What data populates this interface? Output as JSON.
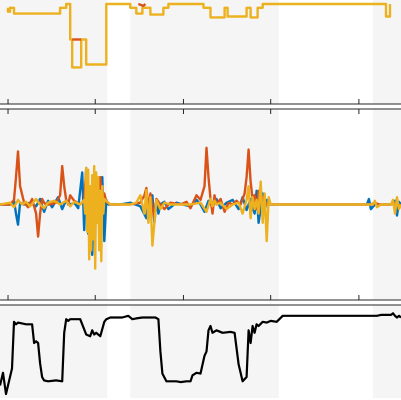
{
  "figure": {
    "description_free": true
  },
  "colors": {
    "blue": "#0072BD",
    "orange": "#D95319",
    "yellow": "#EDB120",
    "black": "#000000",
    "shade": "#F5F5F5",
    "axis": "#262626"
  },
  "chart_data": [
    {
      "type": "line",
      "panel": "top",
      "xlim": [
        0,
        400
      ],
      "ylim": [
        0,
        100
      ],
      "grid": false,
      "legend": "none",
      "shaded_x_ranges": [
        [
          0,
          107
        ],
        [
          130,
          278
        ],
        [
          372,
          400
        ]
      ],
      "x_ticks": [
        95,
        183,
        270,
        358
      ],
      "series": [
        {
          "color": "yellow",
          "x": [
            8,
            8,
            10,
            10,
            14,
            14,
            60,
            60,
            66,
            66,
            70,
            70,
            72,
            72,
            81,
            81,
            86,
            86,
            106,
            106,
            130,
            130,
            136,
            136,
            142,
            142,
            150,
            150,
            163,
            163,
            168,
            168,
            203,
            203,
            210,
            210,
            224,
            224,
            227,
            227,
            246,
            246,
            250,
            250,
            257,
            257,
            262,
            262,
            385,
            385,
            389,
            389
          ],
          "y": [
            96,
            92,
            92,
            96,
            96,
            90,
            90,
            96,
            96,
            100,
            100,
            63,
            63,
            34,
            34,
            63,
            63,
            37,
            37,
            100,
            100,
            96,
            96,
            90,
            90,
            96,
            96,
            89,
            89,
            96,
            96,
            100,
            100,
            96,
            96,
            86,
            86,
            96,
            96,
            87,
            87,
            96,
            96,
            86,
            86,
            96,
            96,
            100,
            100,
            87,
            87,
            100
          ]
        },
        {
          "color": "orange",
          "x": [
            138,
            143,
            145
          ],
          "y": [
            100,
            98,
            100
          ]
        },
        {
          "color": "orange",
          "x": [
            72,
            81
          ],
          "y": [
            63,
            63
          ]
        }
      ]
    },
    {
      "type": "line",
      "panel": "middle",
      "xlim": [
        0,
        400
      ],
      "ylim": [
        -1,
        1
      ],
      "grid": false,
      "legend": "none",
      "shaded_x_ranges": [
        [
          0,
          107
        ],
        [
          130,
          278
        ],
        [
          372,
          400
        ]
      ],
      "x_ticks": [
        95,
        183,
        270,
        358
      ],
      "series": [
        {
          "color": "blue",
          "x": [
            0,
            12,
            14,
            16,
            18,
            20,
            24,
            30,
            36,
            40,
            44,
            48,
            52,
            58,
            62,
            66,
            70,
            74,
            78,
            82,
            84,
            86,
            88,
            90,
            92,
            94,
            96,
            98,
            100,
            102,
            104,
            106,
            108,
            112,
            120,
            130,
            140,
            146,
            148,
            150,
            152,
            154,
            156,
            158,
            160,
            164,
            168,
            176,
            182,
            190,
            196,
            200,
            204,
            208,
            212,
            216,
            220,
            226,
            232,
            238,
            242,
            246,
            250,
            254,
            256,
            258,
            262,
            264,
            266,
            270,
            274,
            280,
            290,
            300,
            320,
            340,
            360,
            366,
            368,
            370,
            374,
            380,
            390,
            394,
            396,
            398,
            400
          ],
          "y": [
            0,
            0,
            0.04,
            -0.1,
            -0.22,
            0.02,
            0,
            0.02,
            -0.02,
            0.06,
            -0.08,
            0.04,
            -0.03,
            0.08,
            -0.05,
            0.05,
            0,
            0.02,
            -0.04,
            0.35,
            -0.28,
            0.4,
            -0.32,
            0.18,
            -0.55,
            0.22,
            -0.12,
            0.1,
            -0.2,
            0.3,
            -0.4,
            0.05,
            0,
            0,
            0,
            0.02,
            -0.02,
            -0.15,
            0.06,
            -0.08,
            0.1,
            -0.2,
            0.04,
            -0.1,
            0,
            0.03,
            -0.05,
            0.02,
            0,
            -0.02,
            0.05,
            0,
            -0.08,
            0.04,
            -0.02,
            0.06,
            -0.04,
            0.02,
            0.05,
            -0.05,
            0.08,
            -0.06,
            0.06,
            -0.1,
            0.15,
            -0.2,
            0.12,
            -0.08,
            0.05,
            0,
            0,
            0,
            0,
            0,
            0,
            0,
            0,
            0,
            0.06,
            -0.05,
            0,
            0,
            0,
            0.04,
            -0.12,
            0.03,
            0
          ]
        },
        {
          "color": "orange",
          "x": [
            0,
            10,
            14,
            16,
            18,
            20,
            24,
            28,
            32,
            36,
            38,
            40,
            42,
            44,
            46,
            50,
            56,
            60,
            62,
            64,
            66,
            68,
            70,
            74,
            80,
            84,
            86,
            88,
            90,
            92,
            94,
            96,
            98,
            100,
            102,
            104,
            106,
            110,
            120,
            130,
            140,
            144,
            146,
            148,
            150,
            152,
            154,
            156,
            160,
            164,
            170,
            180,
            186,
            190,
            196,
            200,
            204,
            206,
            208,
            210,
            212,
            214,
            216,
            220,
            224,
            228,
            232,
            236,
            240,
            244,
            246,
            248,
            250,
            252,
            254,
            256,
            258,
            260,
            262,
            264,
            266,
            270,
            276,
            290,
            320,
            350,
            370,
            374,
            378,
            390,
            396,
            398,
            400
          ],
          "y": [
            0,
            0,
            0.05,
            0.3,
            0.58,
            0.2,
            0.02,
            -0.03,
            0.06,
            -0.1,
            -0.35,
            -0.1,
            0.06,
            0.02,
            0,
            0,
            0.02,
            0.1,
            0.42,
            0.2,
            0.05,
            0,
            0.1,
            0.04,
            0,
            0.05,
            0.38,
            0.04,
            -0.1,
            0.06,
            -0.08,
            0.1,
            0.02,
            0.3,
            -0.05,
            0.12,
            0.03,
            0,
            0,
            0,
            0.02,
            0.1,
            0.18,
            -0.05,
            0.12,
            -0.02,
            -0.15,
            0.06,
            0,
            -0.05,
            0.02,
            0,
            0.03,
            -0.04,
            0.1,
            0.05,
            0.2,
            0.62,
            0.3,
            0.06,
            -0.1,
            0.1,
            0,
            0.06,
            -0.08,
            0.02,
            0,
            0.04,
            0,
            0.12,
            0.3,
            0.6,
            0.25,
            0.06,
            0.1,
            -0.05,
            0.15,
            0.02,
            0.08,
            0.04,
            0,
            0,
            0,
            0,
            0,
            0,
            0,
            0.02,
            0,
            0,
            0.02,
            -0.02,
            0
          ]
        },
        {
          "color": "yellow",
          "x": [
            0,
            10,
            14,
            18,
            22,
            26,
            30,
            36,
            40,
            44,
            48,
            54,
            60,
            66,
            70,
            74,
            80,
            84,
            85,
            86,
            87,
            88,
            89,
            90,
            91,
            92,
            93,
            94,
            95,
            96,
            97,
            98,
            99,
            100,
            101,
            102,
            103,
            104,
            106,
            110,
            120,
            130,
            136,
            140,
            144,
            146,
            148,
            150,
            152,
            156,
            160,
            164,
            170,
            180,
            190,
            200,
            206,
            210,
            212,
            214,
            216,
            220,
            226,
            232,
            238,
            242,
            246,
            248,
            250,
            252,
            254,
            256,
            258,
            260,
            262,
            264,
            266,
            268,
            270,
            274,
            280,
            300,
            330,
            360,
            372,
            374,
            376,
            380,
            390,
            392,
            394,
            396,
            398,
            400
          ],
          "y": [
            0,
            0.02,
            -0.03,
            0.05,
            0,
            0.03,
            -0.02,
            0.06,
            0,
            -0.04,
            0.02,
            0.04,
            0,
            0.04,
            -0.02,
            0.03,
            0,
            0.05,
            -0.1,
            0.4,
            -0.3,
            0.38,
            -0.6,
            0.2,
            -0.5,
            0.32,
            -0.38,
            0.42,
            -0.7,
            0.35,
            -0.2,
            0.3,
            -0.5,
            0.15,
            -0.62,
            0.2,
            -0.1,
            0.06,
            0.04,
            0,
            0,
            0,
            0.02,
            0.1,
            -0.1,
            0.16,
            -0.2,
            0.08,
            -0.45,
            0.05,
            -0.05,
            0.02,
            0,
            0,
            0,
            0.02,
            -0.08,
            0.06,
            -0.02,
            0.04,
            0,
            0.02,
            -0.05,
            0,
            0.02,
            -0.1,
            0.05,
            0.2,
            -0.15,
            0.08,
            -0.05,
            0.05,
            -0.1,
            0.25,
            -0.2,
            0.12,
            -0.4,
            0.08,
            0,
            0,
            0,
            0,
            0,
            0,
            0,
            0.04,
            -0.03,
            0,
            0,
            0.05,
            -0.1,
            0.08,
            -0.05,
            0
          ]
        }
      ]
    },
    {
      "type": "line",
      "panel": "bottom",
      "xlim": [
        0,
        400
      ],
      "ylim": [
        0,
        1
      ],
      "grid": false,
      "legend": "none",
      "shaded_x_ranges": [
        [
          0,
          107
        ],
        [
          130,
          278
        ],
        [
          372,
          400
        ]
      ],
      "series": [
        {
          "color": "black",
          "x": [
            0,
            3,
            6,
            9,
            12,
            14,
            16,
            18,
            26,
            32,
            34,
            36,
            38,
            40,
            42,
            44,
            48,
            56,
            62,
            64,
            66,
            68,
            70,
            80,
            86,
            90,
            92,
            94,
            96,
            98,
            100,
            104,
            106,
            110,
            122,
            128,
            132,
            136,
            142,
            150,
            155,
            158,
            160,
            162,
            166,
            176,
            180,
            186,
            190,
            192,
            196,
            200,
            204,
            206,
            208,
            210,
            212,
            216,
            222,
            230,
            234,
            238,
            242,
            246,
            248,
            250,
            252,
            254,
            256,
            258,
            262,
            266,
            270,
            276,
            282,
            300,
            320,
            340,
            360,
            370,
            376,
            380,
            390,
            392,
            394,
            396,
            398,
            400
          ],
          "y": [
            0.1,
            0.25,
            0,
            0.15,
            0.3,
            0.85,
            0.82,
            0.84,
            0.82,
            0.82,
            0.6,
            0.62,
            0.6,
            0.36,
            0.2,
            0.16,
            0.15,
            0.16,
            0.15,
            0.72,
            0.88,
            0.86,
            0.88,
            0.88,
            0.7,
            0.68,
            0.75,
            0.7,
            0.72,
            0.7,
            0.68,
            0.85,
            0.88,
            0.9,
            0.9,
            0.92,
            0.88,
            0.89,
            0.9,
            0.9,
            0.9,
            0.88,
            0.5,
            0.24,
            0.15,
            0.15,
            0.14,
            0.15,
            0.15,
            0.22,
            0.25,
            0.24,
            0.45,
            0.5,
            0.75,
            0.8,
            0.72,
            0.75,
            0.72,
            0.73,
            0.72,
            0.35,
            0.15,
            0.2,
            0.75,
            0.6,
            0.8,
            0.72,
            0.82,
            0.8,
            0.85,
            0.84,
            0.86,
            0.85,
            0.92,
            0.92,
            0.92,
            0.92,
            0.92,
            0.92,
            0.92,
            0.93,
            0.93,
            0.95,
            0.92,
            0.9,
            0.92,
            0.9
          ]
        }
      ]
    }
  ]
}
